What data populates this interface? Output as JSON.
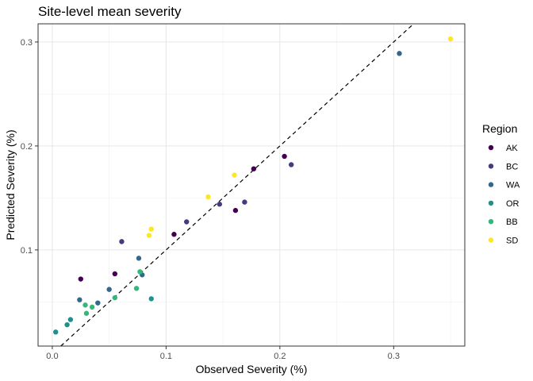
{
  "chart_data": {
    "type": "scatter",
    "title": "Site-level mean severity",
    "xlabel": "Observed Severity (%)",
    "ylabel": "Predicted Severity (%)",
    "xlim": [
      -0.0125,
      0.3625
    ],
    "ylim": [
      0.0075,
      0.3175
    ],
    "x_ticks": [
      0.0,
      0.1,
      0.2,
      0.3
    ],
    "x_tick_labels": [
      "0.0",
      "0.1",
      "0.2",
      "0.3"
    ],
    "y_ticks": [
      0.1,
      0.2,
      0.3
    ],
    "y_tick_labels": [
      "0.1",
      "0.2",
      "0.3"
    ],
    "grid": true,
    "reference_line": {
      "type": "identity",
      "style": "dashed"
    },
    "legend": {
      "title": "Region",
      "position": "right"
    },
    "series": [
      {
        "name": "AK",
        "color": "#440154",
        "points": [
          [
            0.025,
            0.072
          ],
          [
            0.055,
            0.077
          ],
          [
            0.107,
            0.115
          ],
          [
            0.161,
            0.138
          ],
          [
            0.177,
            0.178
          ],
          [
            0.204,
            0.19
          ]
        ]
      },
      {
        "name": "BC",
        "color": "#443A83",
        "points": [
          [
            0.061,
            0.108
          ],
          [
            0.118,
            0.127
          ],
          [
            0.147,
            0.144
          ],
          [
            0.169,
            0.146
          ],
          [
            0.21,
            0.182
          ]
        ]
      },
      {
        "name": "WA",
        "color": "#31688E",
        "points": [
          [
            0.024,
            0.052
          ],
          [
            0.04,
            0.049
          ],
          [
            0.05,
            0.062
          ],
          [
            0.076,
            0.092
          ],
          [
            0.079,
            0.076
          ],
          [
            0.305,
            0.289
          ]
        ]
      },
      {
        "name": "OR",
        "color": "#21908C",
        "points": [
          [
            0.003,
            0.021
          ],
          [
            0.013,
            0.028
          ],
          [
            0.016,
            0.033
          ],
          [
            0.087,
            0.053
          ]
        ]
      },
      {
        "name": "BB",
        "color": "#35B779",
        "points": [
          [
            0.029,
            0.047
          ],
          [
            0.03,
            0.039
          ],
          [
            0.035,
            0.045
          ],
          [
            0.055,
            0.054
          ],
          [
            0.074,
            0.063
          ],
          [
            0.077,
            0.079
          ]
        ]
      },
      {
        "name": "SD",
        "color": "#FDE725",
        "points": [
          [
            0.085,
            0.114
          ],
          [
            0.087,
            0.12
          ],
          [
            0.137,
            0.151
          ],
          [
            0.16,
            0.172
          ],
          [
            0.35,
            0.303
          ]
        ]
      }
    ]
  }
}
